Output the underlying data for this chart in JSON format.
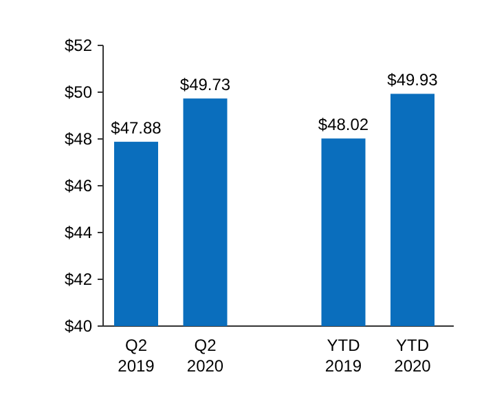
{
  "chart_data": {
    "type": "bar",
    "categories": [
      "Q2\n2019",
      "Q2\n2020",
      null,
      "YTD\n2019",
      "YTD\n2020"
    ],
    "values": [
      47.88,
      49.73,
      null,
      48.02,
      49.93
    ],
    "value_labels": [
      "$47.88",
      "$49.73",
      null,
      "$48.02",
      "$49.93"
    ],
    "color": "#0a6ebd",
    "ylim": [
      40,
      52
    ],
    "yticks": [
      {
        "value": 40,
        "label": "$40"
      },
      {
        "value": 42,
        "label": "$42"
      },
      {
        "value": 44,
        "label": "$44"
      },
      {
        "value": 46,
        "label": "$46"
      },
      {
        "value": 48,
        "label": "$48"
      },
      {
        "value": 50,
        "label": "$50"
      },
      {
        "value": 52,
        "label": "$52"
      }
    ],
    "grid": false
  }
}
